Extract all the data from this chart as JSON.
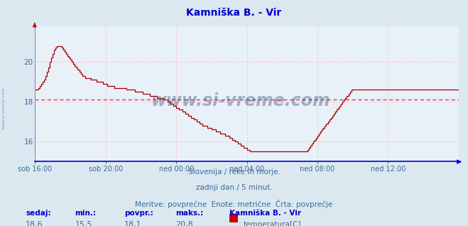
{
  "title": "Kamniška B. - Vir",
  "background_color": "#dce8f0",
  "plot_bg_color": "#e8f0f8",
  "grid_color": "#ffb0b0",
  "line_color": "#aa0000",
  "avg_line_color": "#ff2020",
  "avg_value": 18.1,
  "y_min": 15.0,
  "y_max": 21.8,
  "y_ticks": [
    16,
    18,
    20
  ],
  "x_labels": [
    "sob 16:00",
    "sob 20:00",
    "ned 00:00",
    "ned 04:00",
    "ned 08:00",
    "ned 12:00"
  ],
  "x_tick_positions": [
    0,
    48,
    96,
    144,
    192,
    240
  ],
  "total_points": 289,
  "subtitle1": "Slovenija / reke in morje.",
  "subtitle2": "zadnji dan / 5 minut.",
  "subtitle3": "Meritve: povprečne  Enote: metrične  Črta: povprečje",
  "footer_labels": [
    "sedaj:",
    "min.:",
    "povpr.:",
    "maks.:"
  ],
  "footer_values": [
    "18,6",
    "15,5",
    "18,1",
    "20,8"
  ],
  "legend_title": "Kamniška B. - Vir",
  "legend_label": "temperatura[C]",
  "legend_color": "#cc0000",
  "watermark": "www.si-vreme.com",
  "watermark_color": "#1a3a6a",
  "sidebar_text": "www.si-vreme.com",
  "sidebar_color": "#3a6a9a",
  "title_color": "#0000cc",
  "subtitle_color": "#3a6a9a",
  "footer_label_color": "#0000cc",
  "footer_value_color": "#3a6a9a",
  "axis_label_color": "#3a6a9a",
  "temperature_data": [
    18.6,
    18.6,
    18.7,
    18.8,
    18.9,
    19.0,
    19.1,
    19.3,
    19.5,
    19.7,
    20.0,
    20.2,
    20.4,
    20.6,
    20.7,
    20.8,
    20.8,
    20.8,
    20.7,
    20.6,
    20.5,
    20.4,
    20.3,
    20.2,
    20.1,
    20.0,
    19.9,
    19.8,
    19.7,
    19.6,
    19.5,
    19.4,
    19.3,
    19.3,
    19.2,
    19.2,
    19.2,
    19.2,
    19.1,
    19.1,
    19.1,
    19.1,
    19.0,
    19.0,
    19.0,
    19.0,
    18.9,
    18.9,
    18.9,
    18.8,
    18.8,
    18.8,
    18.8,
    18.8,
    18.7,
    18.7,
    18.7,
    18.7,
    18.7,
    18.7,
    18.7,
    18.7,
    18.6,
    18.6,
    18.6,
    18.6,
    18.6,
    18.6,
    18.5,
    18.5,
    18.5,
    18.5,
    18.5,
    18.4,
    18.4,
    18.4,
    18.4,
    18.4,
    18.3,
    18.3,
    18.3,
    18.3,
    18.3,
    18.2,
    18.2,
    18.2,
    18.2,
    18.1,
    18.1,
    18.1,
    18.0,
    18.0,
    17.9,
    17.9,
    17.8,
    17.8,
    17.7,
    17.7,
    17.6,
    17.6,
    17.5,
    17.5,
    17.4,
    17.4,
    17.3,
    17.3,
    17.2,
    17.2,
    17.1,
    17.1,
    17.0,
    17.0,
    16.9,
    16.9,
    16.8,
    16.8,
    16.8,
    16.7,
    16.7,
    16.7,
    16.6,
    16.6,
    16.6,
    16.5,
    16.5,
    16.5,
    16.4,
    16.4,
    16.4,
    16.3,
    16.3,
    16.3,
    16.2,
    16.2,
    16.1,
    16.1,
    16.0,
    16.0,
    15.9,
    15.9,
    15.8,
    15.8,
    15.7,
    15.7,
    15.6,
    15.6,
    15.5,
    15.5,
    15.5,
    15.5,
    15.5,
    15.5,
    15.5,
    15.5,
    15.5,
    15.5,
    15.5,
    15.5,
    15.5,
    15.5,
    15.5,
    15.5,
    15.5,
    15.5,
    15.5,
    15.5,
    15.5,
    15.5,
    15.5,
    15.5,
    15.5,
    15.5,
    15.5,
    15.5,
    15.5,
    15.5,
    15.5,
    15.5,
    15.5,
    15.5,
    15.5,
    15.5,
    15.5,
    15.5,
    15.5,
    15.6,
    15.7,
    15.8,
    15.9,
    16.0,
    16.1,
    16.2,
    16.3,
    16.4,
    16.5,
    16.6,
    16.7,
    16.8,
    16.9,
    17.0,
    17.1,
    17.2,
    17.3,
    17.4,
    17.5,
    17.6,
    17.7,
    17.8,
    17.9,
    18.0,
    18.1,
    18.2,
    18.3,
    18.4,
    18.5,
    18.6,
    18.6,
    18.6,
    18.6,
    18.6,
    18.6,
    18.6,
    18.6,
    18.6,
    18.6,
    18.6,
    18.6,
    18.6,
    18.6,
    18.6,
    18.6,
    18.6,
    18.6,
    18.6,
    18.6,
    18.6,
    18.6,
    18.6,
    18.6,
    18.6,
    18.6,
    18.6,
    18.6,
    18.6,
    18.6,
    18.6,
    18.6,
    18.6,
    18.6,
    18.6,
    18.6,
    18.6,
    18.6,
    18.6,
    18.6,
    18.6,
    18.6,
    18.6,
    18.6,
    18.6,
    18.6,
    18.6,
    18.6,
    18.6,
    18.6,
    18.6,
    18.6,
    18.6,
    18.6,
    18.6,
    18.6,
    18.6,
    18.6,
    18.6,
    18.6,
    18.6,
    18.6,
    18.6,
    18.6,
    18.6,
    18.6,
    18.6,
    18.6,
    18.6,
    18.6,
    18.6,
    18.6,
    18.6,
    18.6
  ]
}
